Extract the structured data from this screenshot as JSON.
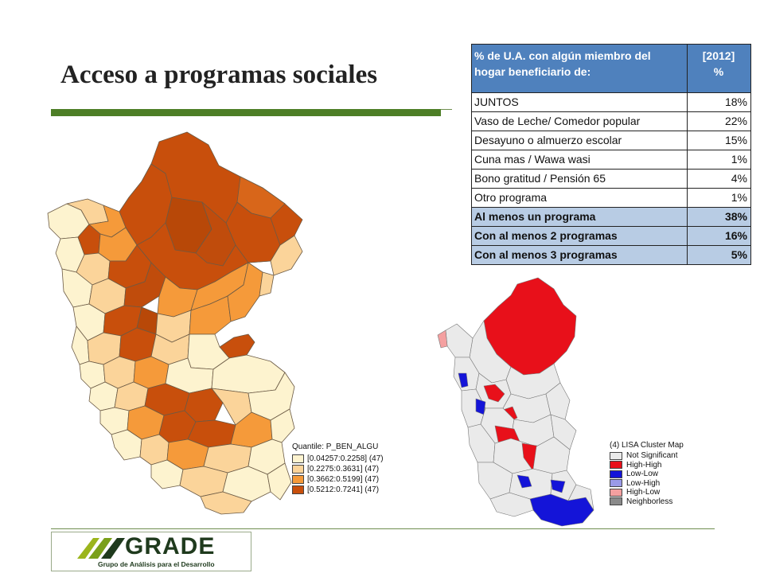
{
  "slide": {
    "title": "Acceso a programas sociales"
  },
  "table": {
    "header_label": "% de U.A. con algún miembro del hogar beneficiario de:",
    "header_year": "[2012]",
    "header_pct": "%",
    "rows": [
      {
        "label": "JUNTOS",
        "value": "18%"
      },
      {
        "label": "Vaso de Leche/ Comedor popular",
        "value": "22%"
      },
      {
        "label": "Desayuno o almuerzo escolar",
        "value": "15%"
      },
      {
        "label": "Cuna mas / Wawa wasi",
        "value": "1%"
      },
      {
        "label": "Bono gratitud / Pensión 65",
        "value": "4%"
      },
      {
        "label": "Otro programa",
        "value": "1%"
      },
      {
        "label": "Al menos un programa",
        "value": "38%"
      },
      {
        "label": "Con al menos 2 programas",
        "value": "16%"
      },
      {
        "label": "Con al menos 3 programas",
        "value": "5%"
      }
    ]
  },
  "map_quantile": {
    "legend_title": "Quantile: P_BEN_ALGU",
    "classes": [
      {
        "label": "[0.04257:0.2258] (47)",
        "color": "#fdf3cf"
      },
      {
        "label": "[0.2275:0.3631] (47)",
        "color": "#fbd49a"
      },
      {
        "label": "[0.3662:0.5199] (47)",
        "color": "#f59a3a"
      },
      {
        "label": "[0.5212:0.7241] (47)",
        "color": "#c84f0c"
      }
    ]
  },
  "map_lisa": {
    "legend_title": "(4) LISA Cluster Map",
    "classes": [
      {
        "label": "Not Significant",
        "color": "#eaeaea"
      },
      {
        "label": "High-High",
        "color": "#e8101a"
      },
      {
        "label": "Low-Low",
        "color": "#1414d8"
      },
      {
        "label": "Low-High",
        "color": "#9a9ae8"
      },
      {
        "label": "High-Low",
        "color": "#f4a0a0"
      },
      {
        "label": "Neighborless",
        "color": "#8a8a8a"
      }
    ]
  },
  "logo": {
    "name": "GRADE",
    "subtitle": "Grupo de Análisis para el Desarrollo"
  }
}
